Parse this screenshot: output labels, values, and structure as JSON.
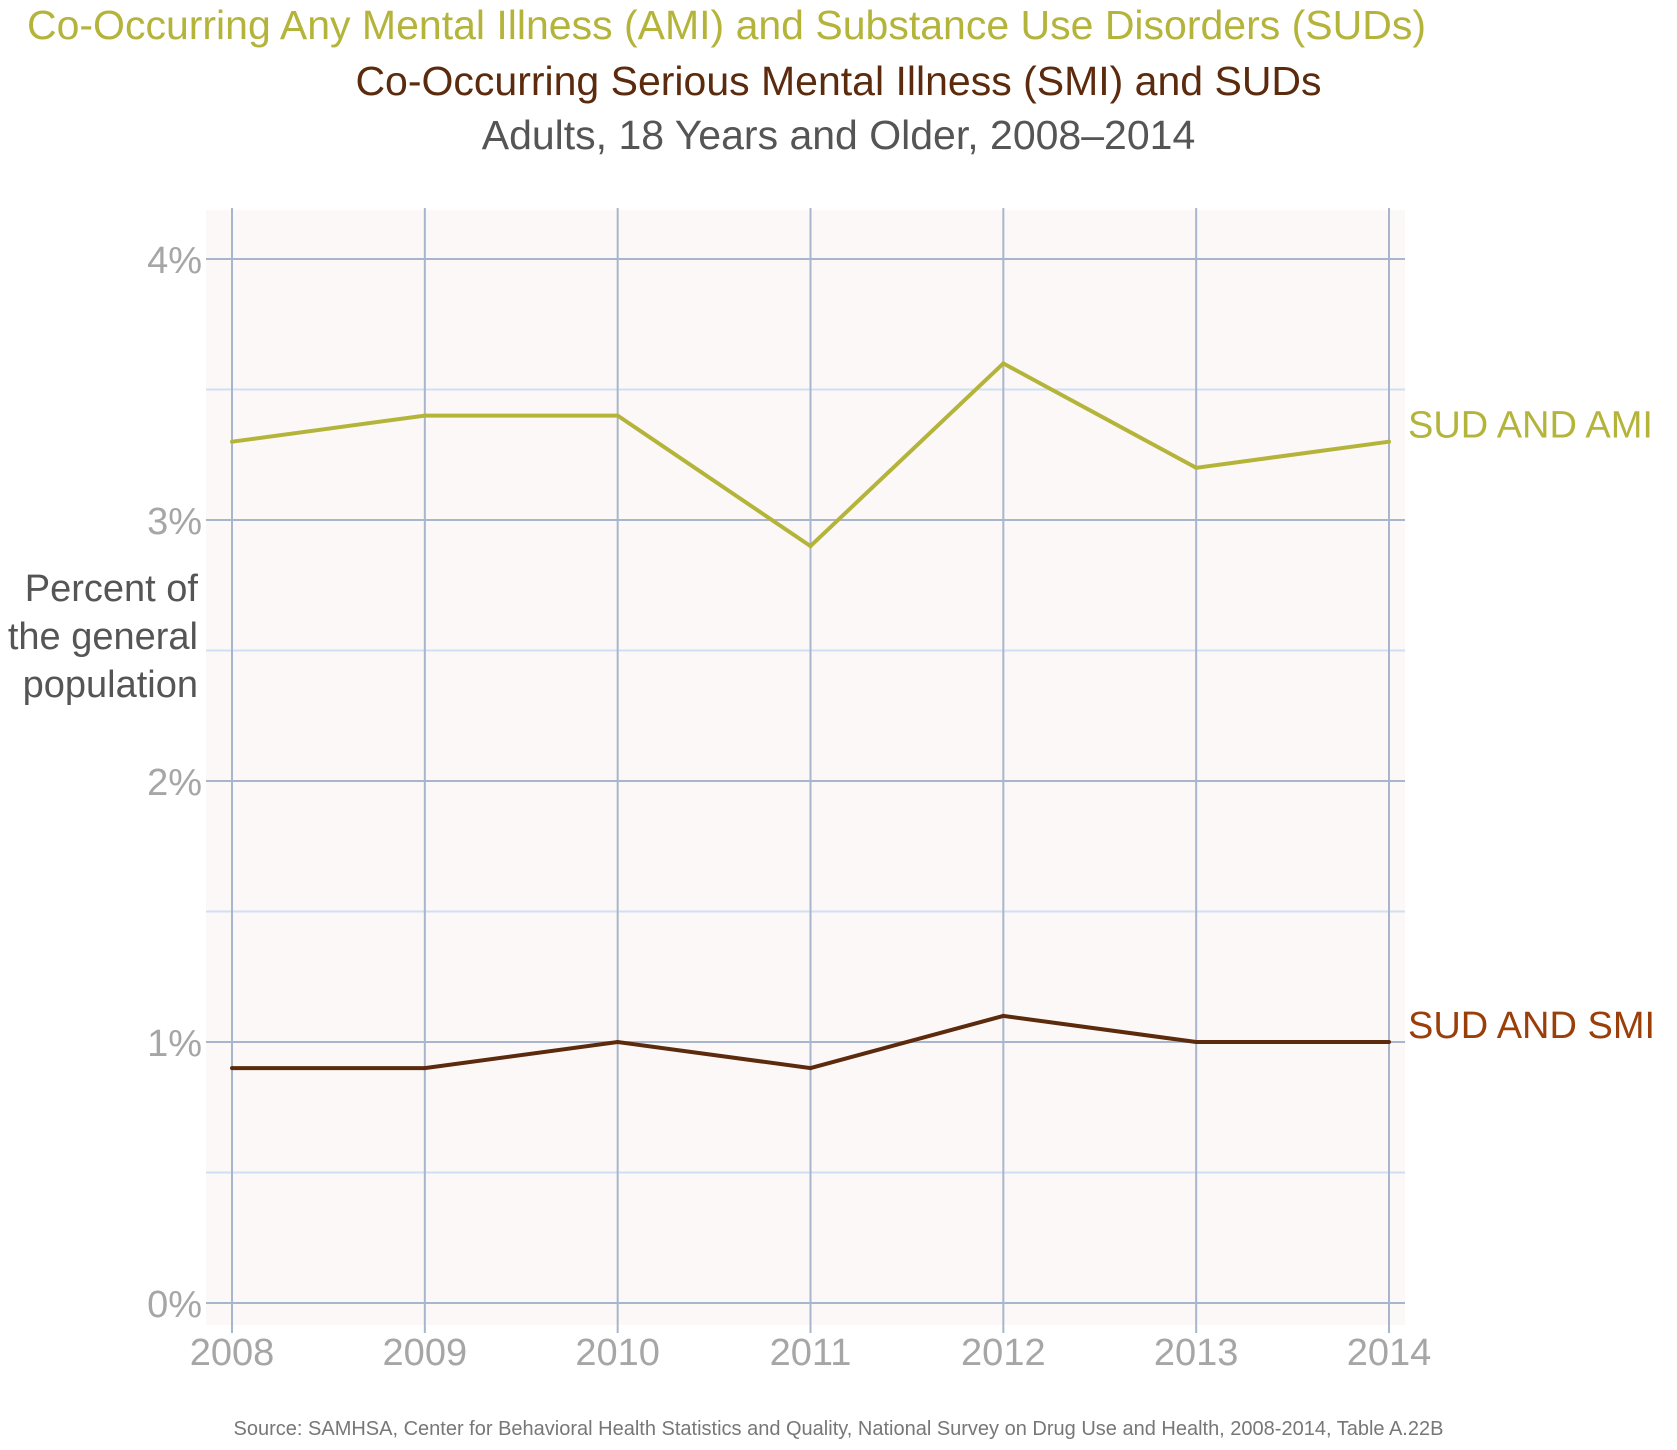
{
  "titles": {
    "line1": "Co-Occurring Any Mental Illness (AMI) and Substance Use Disorders (SUDs)",
    "line2": "Co-Occurring Serious Mental Illness (SMI) and SUDs",
    "line3": "Adults, 18 Years and Older, 2008–2014"
  },
  "y_axis_label": [
    "Percent of",
    "the general",
    "population"
  ],
  "source": "Source: SAMHSA, Center for Behavioral Health Statistics and Quality, National Survey on Drug Use and Health, 2008-2014, Table A.22B",
  "colors": {
    "ami": "#b5b43a",
    "smi": "#5c2a0c",
    "smi_label": "#9a3f0a",
    "plot_bg": "#fcf8f7",
    "grid_major": "#a8b6cd",
    "grid_minor": "#cfe0f4",
    "tick_text": "#a6a6a6"
  },
  "chart_data": {
    "type": "line",
    "x": [
      "2008",
      "2009",
      "2010",
      "2011",
      "2012",
      "2013",
      "2014"
    ],
    "series": [
      {
        "name": "SUD AND AMI",
        "values": [
          3.3,
          3.4,
          3.4,
          2.9,
          3.6,
          3.2,
          3.3
        ]
      },
      {
        "name": "SUD AND SMI",
        "values": [
          0.9,
          0.9,
          1.0,
          0.9,
          1.1,
          1.0,
          1.0
        ]
      }
    ],
    "yticks": [
      0,
      1,
      2,
      3,
      4
    ],
    "ytick_labels": [
      "0%",
      "1%",
      "2%",
      "3%",
      "4%"
    ],
    "minor_gridlines": [
      0.5,
      1.5,
      2.5,
      3.5
    ],
    "ylim": [
      0,
      4.18
    ],
    "grid": true,
    "legend": "inline-right"
  }
}
